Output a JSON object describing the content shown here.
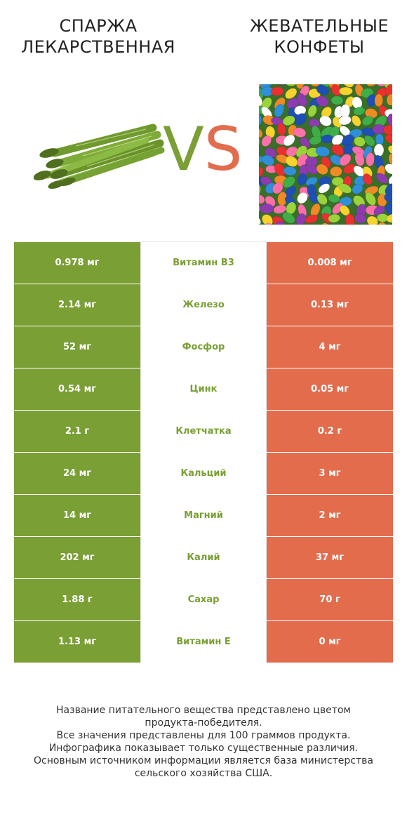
{
  "header": {
    "left_title_line1": "Спаржа",
    "left_title_line2": "лекарственная",
    "right_title_line1": "Жевательные",
    "right_title_line2": "конфеты",
    "vs_v": "V",
    "vs_s": "S"
  },
  "images": {
    "left": "asparagus-image",
    "right": "jelly-beans-image"
  },
  "colors": {
    "winner_left": "#7a9f35",
    "winner_right": "#e36c4d"
  },
  "rows": [
    {
      "left": "0.978 мг",
      "name": "Витамин B3",
      "right": "0.008 мг"
    },
    {
      "left": "2.14 мг",
      "name": "Железо",
      "right": "0.13 мг"
    },
    {
      "left": "52 мг",
      "name": "Фосфор",
      "right": "4 мг"
    },
    {
      "left": "0.54 мг",
      "name": "Цинк",
      "right": "0.05 мг"
    },
    {
      "left": "2.1 г",
      "name": "Клетчатка",
      "right": "0.2 г"
    },
    {
      "left": "24 мг",
      "name": "Кальций",
      "right": "3 мг"
    },
    {
      "left": "14 мг",
      "name": "Магний",
      "right": "2 мг"
    },
    {
      "left": "202 мг",
      "name": "Калий",
      "right": "37 мг"
    },
    {
      "left": "1.88 г",
      "name": "Сахар",
      "right": "70 г"
    },
    {
      "left": "1.13 мг",
      "name": "Витамин E",
      "right": "0 мг"
    }
  ],
  "footer": {
    "line1": "Название питательного вещества представлено цветом",
    "line2": "продукта-победителя.",
    "line3": "Все значения представлены для 100 граммов продукта.",
    "line4": "Инфографика показывает только существенные различия.",
    "line5": "Основным источником информации является база министерства",
    "line6": "сельского хозяйства США."
  }
}
